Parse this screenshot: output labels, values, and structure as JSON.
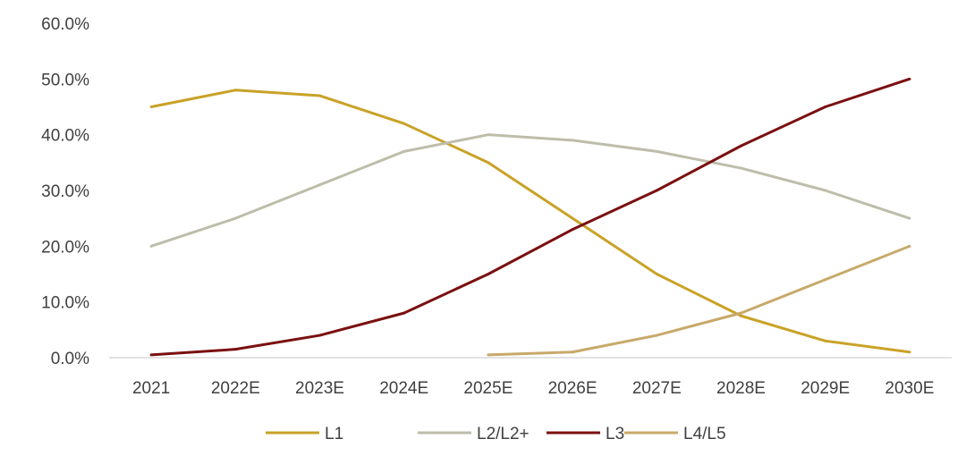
{
  "chart_data": {
    "type": "line",
    "title": "",
    "xlabel": "",
    "ylabel": "",
    "categories": [
      "2021",
      "2022E",
      "2023E",
      "2024E",
      "2025E",
      "2026E",
      "2027E",
      "2028E",
      "2029E",
      "2030E"
    ],
    "ylim": [
      0,
      60
    ],
    "yticks": [
      0,
      10,
      20,
      30,
      40,
      50,
      60
    ],
    "ytick_labels": [
      "0.0%",
      "10.0%",
      "20.0%",
      "30.0%",
      "40.0%",
      "50.0%",
      "60.0%"
    ],
    "grid": false,
    "legend_position": "bottom",
    "series": [
      {
        "name": "L1",
        "color": "#C9A227",
        "values": [
          45,
          48,
          47,
          42,
          35,
          25,
          15,
          7.5,
          3,
          1
        ]
      },
      {
        "name": "L2/L2+",
        "color": "#BDBDAA",
        "values": [
          20,
          25,
          31,
          37,
          40,
          39,
          37,
          34,
          30,
          25
        ]
      },
      {
        "name": "L3",
        "color": "#7A1010",
        "values": [
          0.5,
          1.5,
          4,
          8,
          15,
          23,
          30,
          38,
          45,
          50
        ]
      },
      {
        "name": "L4/L5",
        "color": "#C8A96A",
        "values": [
          null,
          null,
          null,
          null,
          0.5,
          1,
          4,
          8,
          14,
          20
        ]
      }
    ]
  }
}
